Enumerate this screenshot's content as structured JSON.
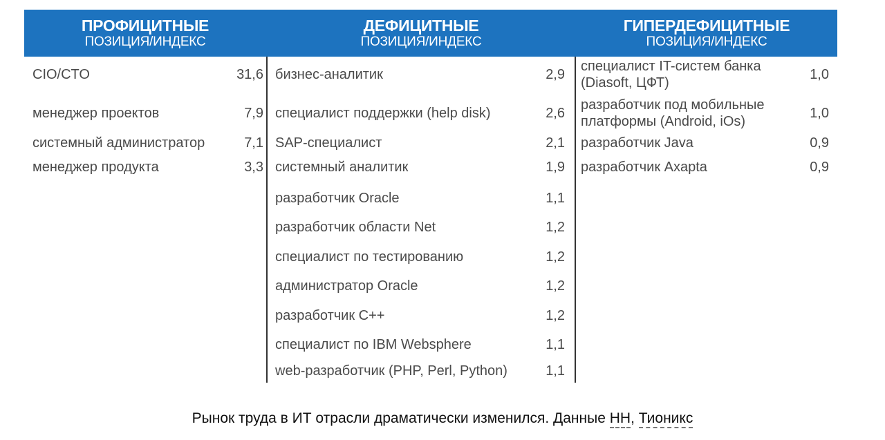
{
  "headers": [
    {
      "title": "ПРОФИЦИТНЫЕ",
      "subtitle": "ПОЗИЦИЯ/ИНДЕКС"
    },
    {
      "title": "ДЕФИЦИТНЫЕ",
      "subtitle": "ПОЗИЦИЯ/ИНДЕКС"
    },
    {
      "title": "ГИПЕРДЕФИЦИТНЫЕ",
      "subtitle": "ПОЗИЦИЯ/ИНДЕКС"
    }
  ],
  "colors": {
    "header_bg": "#1d73bf",
    "header_text": "#ffffff",
    "row_text": "#4a4a4a"
  },
  "surplus": [
    {
      "name": "CIO/CTO",
      "value": "31,6"
    },
    {
      "name": "менеджер проектов",
      "value": "7,9"
    },
    {
      "name": "системный администратор",
      "value": "7,1"
    },
    {
      "name": "менеджер продукта",
      "value": "3,3"
    }
  ],
  "deficit": [
    {
      "name": "бизнес-аналитик",
      "value": "2,9"
    },
    {
      "name": "специалист поддержки (help disk)",
      "value": "2,6"
    },
    {
      "name": "SAP-специалист",
      "value": "2,1"
    },
    {
      "name": "системный аналитик",
      "value": "1,9"
    },
    {
      "name": "разработчик Oracle",
      "value": "1,1"
    },
    {
      "name": "разработчик области Net",
      "value": "1,2"
    },
    {
      "name": "специалист по тестированию",
      "value": "1,2"
    },
    {
      "name": "администратор Oracle",
      "value": "1,2"
    },
    {
      "name": "разработчик C++",
      "value": "1,2"
    },
    {
      "name": "специалист по IBM Websphere",
      "value": "1,1"
    },
    {
      "name": "web-разработчик (PHP, Perl, Python)",
      "value": "1,1"
    }
  ],
  "hyperdeficit": [
    {
      "name_line1": "специалист IT-систем банка",
      "name_line2": "(Diasoft, ЦФТ)",
      "value": "1,0"
    },
    {
      "name_line1": "разработчик под мобильные",
      "name_line2": "платформы (Android, iOs)",
      "value": "1,0"
    },
    {
      "name_line1": "разработчик Java",
      "value": "0,9"
    },
    {
      "name_line1": "разработчик Axapta",
      "value": "0,9"
    }
  ],
  "footer": {
    "text": "Рынок труда в ИТ отрасли драматически изменился. Данные ",
    "link1": "HH",
    "separator": ", ",
    "link2": "Тионикс"
  }
}
